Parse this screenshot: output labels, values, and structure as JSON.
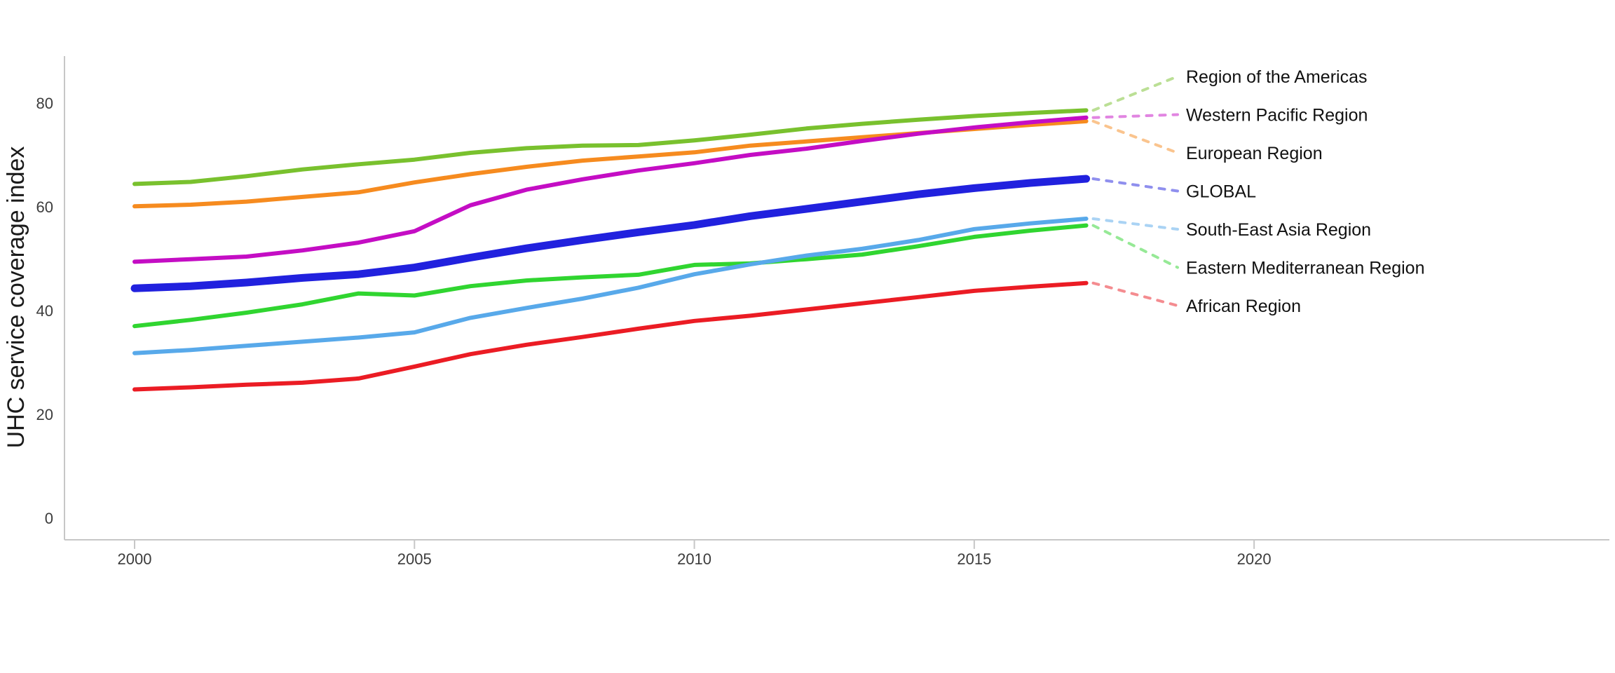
{
  "page": {
    "background": "#ffffff"
  },
  "chart_data": {
    "type": "line",
    "title": "",
    "xlabel": "",
    "ylabel": "UHC service coverage index",
    "x": [
      2000,
      2001,
      2002,
      2003,
      2004,
      2005,
      2006,
      2007,
      2008,
      2009,
      2010,
      2011,
      2012,
      2013,
      2014,
      2015,
      2016,
      2017
    ],
    "x_ticks": [
      "2000",
      "2005",
      "2010",
      "2015",
      "2020"
    ],
    "y_ticks": [
      "0",
      "20",
      "40",
      "60",
      "80"
    ],
    "xlim": [
      1998.7,
      2026.3
    ],
    "ylim": [
      0,
      90
    ],
    "grid": false,
    "legend_position": "right-edge-labels-with-dotted-leaders",
    "axis_color": "#c7c7c7",
    "tick_label_color": "#3c3c3c",
    "label_color": "#111111",
    "series": [
      {
        "name": "Region of the Americas",
        "color": "#79c12e",
        "line_width": 6,
        "values": [
          64.4,
          64.8,
          65.9,
          67.2,
          68.2,
          69.1,
          70.4,
          71.3,
          71.8,
          71.9,
          72.8,
          73.9,
          75.1,
          76.0,
          76.8,
          77.5,
          78.1,
          78.6
        ]
      },
      {
        "name": "Western Pacific Region",
        "color": "#c40dc4",
        "line_width": 6,
        "values": [
          49.4,
          49.9,
          50.4,
          51.6,
          53.1,
          55.3,
          60.3,
          63.3,
          65.3,
          67.0,
          68.4,
          70.0,
          71.2,
          72.7,
          74.1,
          75.3,
          76.3,
          77.2
        ]
      },
      {
        "name": "European Region",
        "color": "#f68b1f",
        "line_width": 6,
        "values": [
          60.1,
          60.4,
          61.0,
          61.9,
          62.8,
          64.7,
          66.3,
          67.7,
          68.9,
          69.7,
          70.5,
          71.8,
          72.6,
          73.4,
          74.2,
          75.0,
          75.8,
          76.5
        ]
      },
      {
        "name": "GLOBAL",
        "color": "#2121de",
        "line_width": 11,
        "values": [
          44.3,
          44.7,
          45.4,
          46.3,
          47.0,
          48.3,
          50.2,
          52.0,
          53.6,
          55.1,
          56.5,
          58.2,
          59.6,
          61.0,
          62.4,
          63.6,
          64.6,
          65.4
        ]
      },
      {
        "name": "South-East Asia Region",
        "color": "#58a9ea",
        "line_width": 6,
        "values": [
          31.8,
          32.4,
          33.2,
          34.0,
          34.8,
          35.8,
          38.6,
          40.5,
          42.3,
          44.4,
          47.0,
          48.9,
          50.6,
          51.9,
          53.6,
          55.7,
          56.8,
          57.7
        ]
      },
      {
        "name": "Eastern Mediterranean Region",
        "color": "#30d530",
        "line_width": 6,
        "values": [
          37.0,
          38.2,
          39.6,
          41.2,
          43.3,
          42.9,
          44.7,
          45.8,
          46.4,
          46.9,
          48.8,
          49.1,
          49.9,
          50.8,
          52.4,
          54.2,
          55.4,
          56.4
        ]
      },
      {
        "name": "African Region",
        "color": "#eb1c24",
        "line_width": 6,
        "values": [
          24.8,
          25.2,
          25.7,
          26.1,
          26.9,
          29.2,
          31.6,
          33.4,
          34.9,
          36.5,
          38.0,
          39.0,
          40.2,
          41.4,
          42.6,
          43.8,
          44.6,
          45.3
        ]
      }
    ]
  }
}
